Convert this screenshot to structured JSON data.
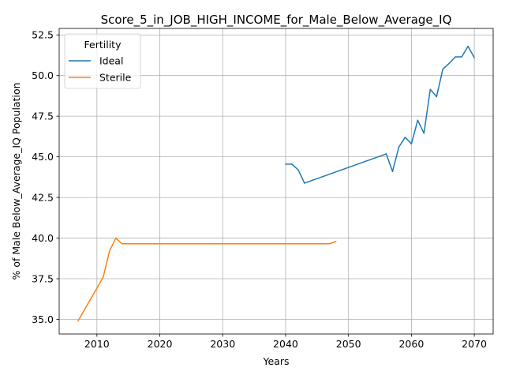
{
  "chart_data": {
    "type": "line",
    "title": "Score_5_in_JOB_HIGH_INCOME_for_Male_Below_Average_IQ",
    "xlabel": "Years",
    "ylabel": "% of Male Below_Average_IQ Population",
    "xlim": [
      2004,
      2073
    ],
    "ylim": [
      34.1,
      52.9
    ],
    "xticks": [
      2010,
      2020,
      2030,
      2040,
      2050,
      2060,
      2070
    ],
    "yticks": [
      35.0,
      37.5,
      40.0,
      42.5,
      45.0,
      47.5,
      50.0,
      52.5
    ],
    "grid": true,
    "legend": {
      "title": "Fertility",
      "placement": "top-left"
    },
    "series": [
      {
        "name": "Ideal",
        "color": "#1f77b4",
        "x": [
          2040,
          2041,
          2042,
          2043,
          2056,
          2057,
          2058,
          2059,
          2060,
          2061,
          2062,
          2063,
          2064,
          2065,
          2066,
          2067,
          2068,
          2069,
          2070
        ],
        "y": [
          44.55,
          44.55,
          44.2,
          43.38,
          45.18,
          44.1,
          45.6,
          46.2,
          45.8,
          47.25,
          46.45,
          49.15,
          48.7,
          50.4,
          50.75,
          51.15,
          51.15,
          51.8,
          51.1
        ]
      },
      {
        "name": "Sterile",
        "color": "#ff7f0e",
        "x": [
          2007,
          2011,
          2012,
          2013,
          2014,
          2047,
          2048
        ],
        "y": [
          34.9,
          37.6,
          39.2,
          40.0,
          39.65,
          39.65,
          39.8
        ]
      }
    ]
  }
}
